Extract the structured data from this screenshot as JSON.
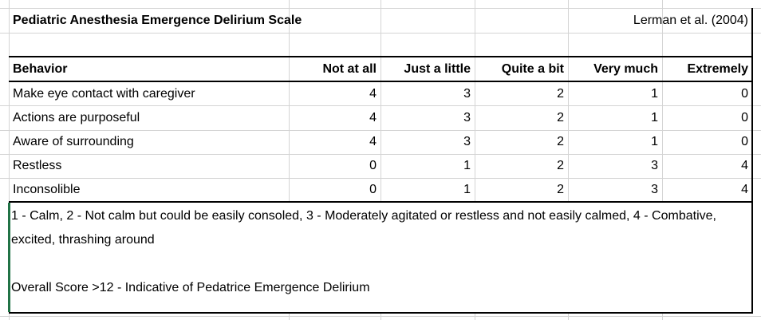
{
  "title": "Pediatric Anesthesia Emergence Delirium Scale",
  "citation": "Lerman et al. (2004)",
  "headers": [
    "Behavior",
    "Not at all",
    "Just a little",
    "Quite a bit",
    "Very much",
    "Extremely"
  ],
  "rows": [
    {
      "behavior": "Make eye contact with caregiver",
      "scores": [
        "4",
        "3",
        "2",
        "1",
        "0"
      ]
    },
    {
      "behavior": "Actions are purposeful",
      "scores": [
        "4",
        "3",
        "2",
        "1",
        "0"
      ]
    },
    {
      "behavior": "Aware of surrounding",
      "scores": [
        "4",
        "3",
        "2",
        "1",
        "0"
      ]
    },
    {
      "behavior": "Restless",
      "scores": [
        "0",
        "1",
        "2",
        "3",
        "4"
      ]
    },
    {
      "behavior": "Inconsolible",
      "scores": [
        "0",
        "1",
        "2",
        "3",
        "4"
      ]
    }
  ],
  "note": {
    "legend": "1 - Calm, 2 - Not calm but could be easily consoled, 3 - Moderately agitated or restless and not easily calmed, 4 - Combative, excited, thrashing around",
    "overall": "Overall Score >12 - Indicative of Pedatrice Emergence Delirium"
  },
  "colors": {
    "gridline": "#d4d4d4",
    "border": "#000000",
    "selection": "#217346"
  }
}
